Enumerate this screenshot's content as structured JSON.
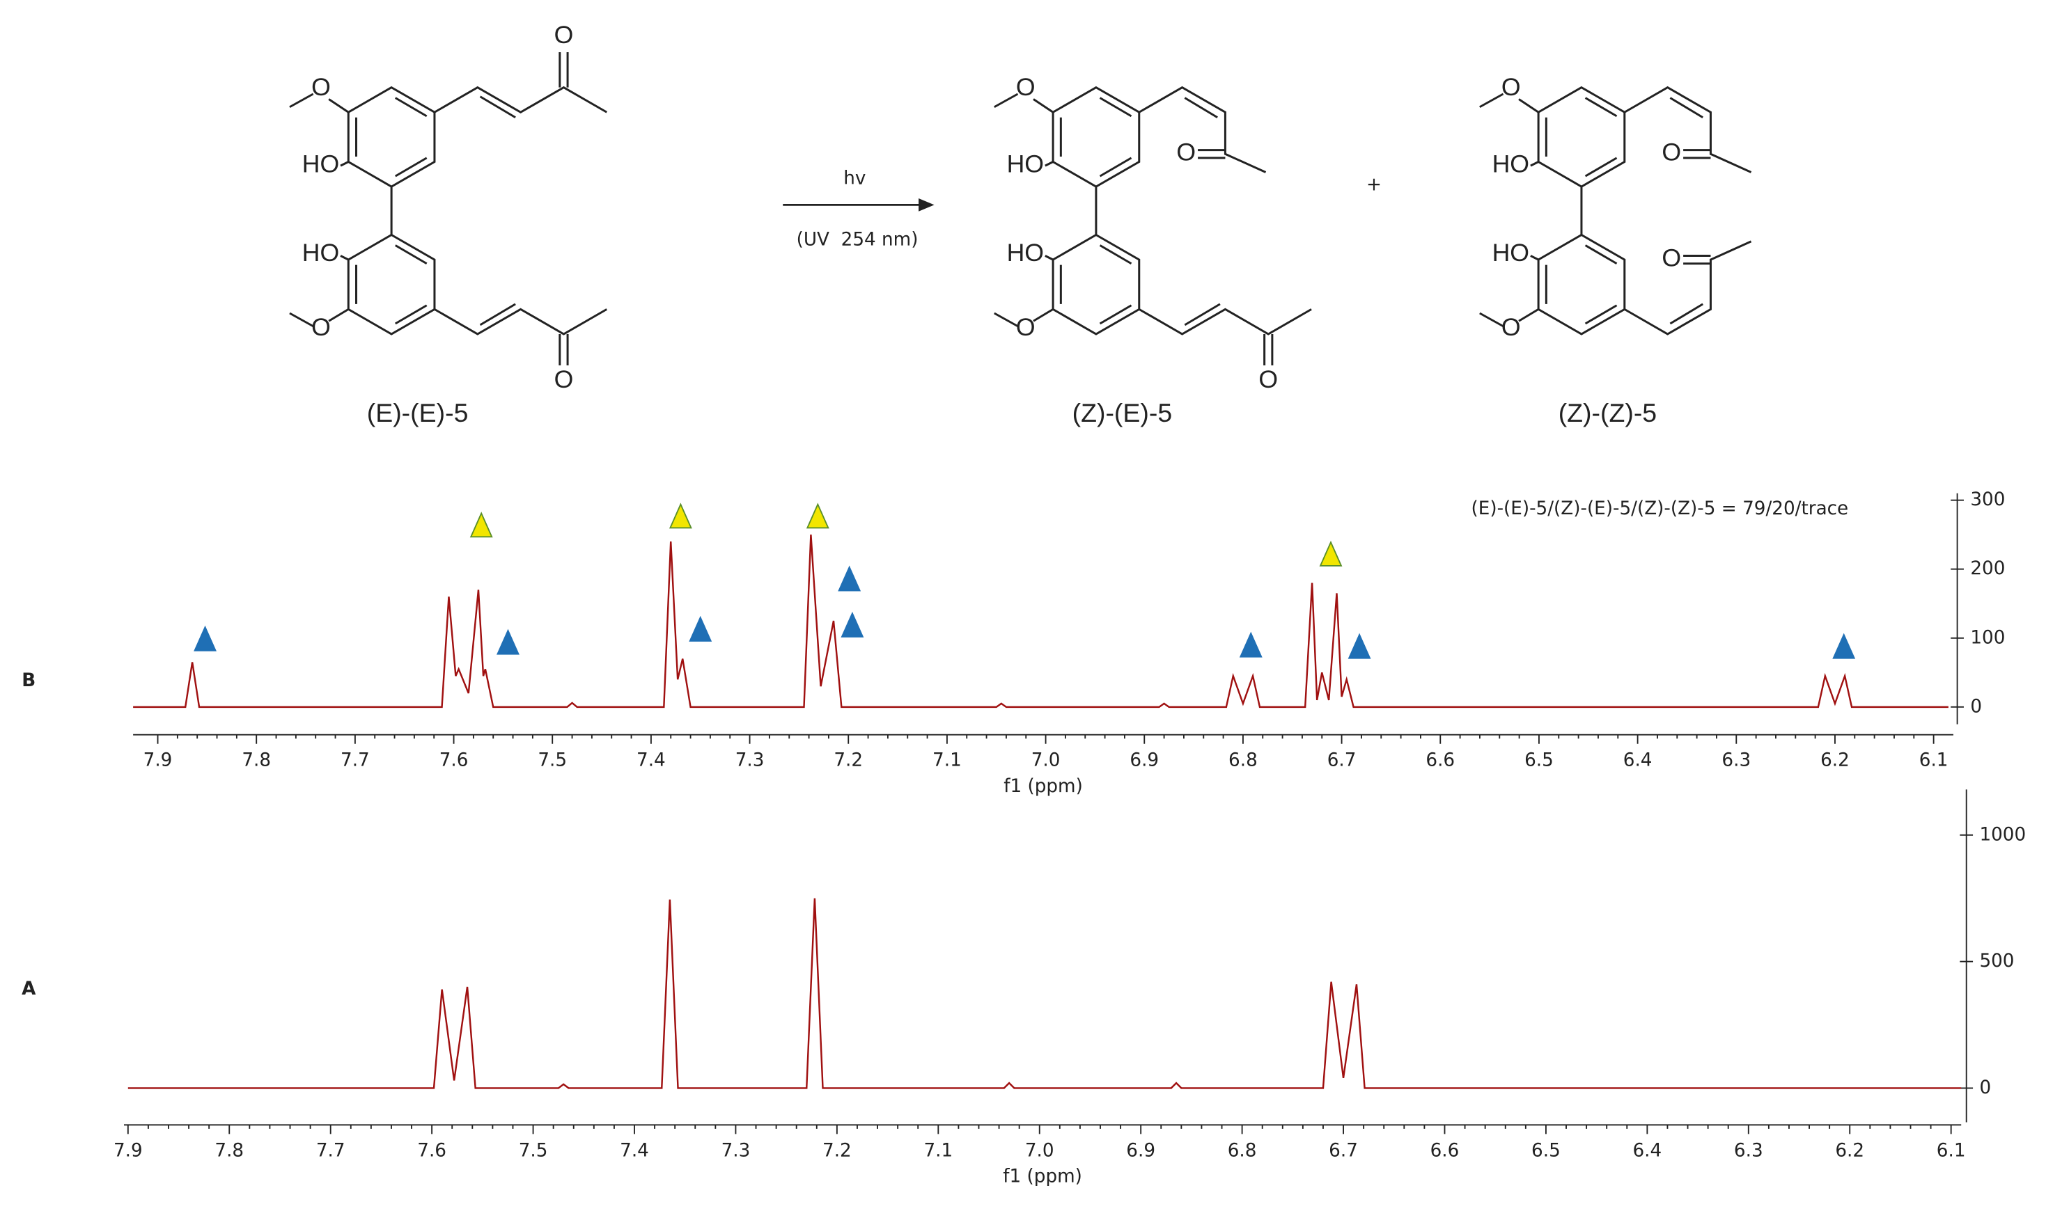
{
  "scheme": {
    "reactant": {
      "label": "(E)-(E)-5",
      "atoms": [
        "O",
        "HO",
        "HO",
        "O",
        "O",
        "O"
      ]
    },
    "arrow_top": "hv",
    "arrow_bottom": "(UV  254 nm)",
    "plus": "+",
    "product1": {
      "label": "(Z)-(E)-5",
      "atoms": [
        "O",
        "HO",
        "HO",
        "O",
        "O",
        "O"
      ]
    },
    "product2": {
      "label": "(Z)-(Z)-5",
      "atoms": [
        "O",
        "HO",
        "HO",
        "O",
        "O",
        "O"
      ]
    }
  },
  "chart_data": [
    {
      "type": "line",
      "panel_label": "B",
      "xlabel": "f1 (ppm)",
      "color": "#a01010",
      "annotation": "(E)-(E)-5/(Z)-(E)-5/(Z)-(Z)-5 = 79/20/trace",
      "xlim": [
        7.925,
        6.08
      ],
      "ylim": [
        -25,
        310
      ],
      "xticks": [
        7.9,
        7.8,
        7.7,
        7.6,
        7.5,
        7.4,
        7.3,
        7.2,
        7.1,
        {
          "value": 7,
          "label": "7.0"
        },
        6.9,
        6.8,
        6.7,
        6.6,
        6.5,
        6.4,
        6.3,
        6.2,
        6.1
      ],
      "yticks": [
        0,
        100,
        200,
        300
      ],
      "x": [
        7.925,
        7.872,
        7.865,
        7.858,
        7.612,
        7.605,
        7.598,
        7.595,
        7.585,
        7.575,
        7.57,
        7.568,
        7.56,
        7.485,
        7.48,
        7.475,
        7.387,
        7.38,
        7.373,
        7.368,
        7.36,
        7.245,
        7.238,
        7.228,
        7.215,
        7.207,
        7.05,
        7.045,
        7.04,
        6.885,
        6.88,
        6.875,
        6.817,
        6.81,
        6.8,
        6.79,
        6.783,
        6.737,
        6.73,
        6.725,
        6.72,
        6.713,
        6.705,
        6.7,
        6.695,
        6.688,
        6.217,
        6.21,
        6.2,
        6.19,
        6.183,
        6.085
      ],
      "values": [
        0,
        0,
        65,
        0,
        0,
        160,
        45,
        55,
        20,
        170,
        45,
        55,
        0,
        0,
        6,
        0,
        0,
        240,
        40,
        70,
        0,
        0,
        250,
        30,
        125,
        0,
        0,
        5,
        0,
        0,
        5,
        0,
        0,
        45,
        5,
        45,
        0,
        0,
        180,
        10,
        50,
        10,
        165,
        15,
        40,
        0,
        0,
        45,
        5,
        45,
        0,
        0
      ],
      "markers": [
        {
          "x": 7.852,
          "y": 97,
          "color": "#1f6fb5"
        },
        {
          "x": 7.545,
          "y": 92,
          "color": "#1f6fb5"
        },
        {
          "x": 7.35,
          "y": 111,
          "color": "#1f6fb5"
        },
        {
          "x": 7.199,
          "y": 184,
          "color": "#1f6fb5"
        },
        {
          "x": 7.196,
          "y": 117,
          "color": "#1f6fb5"
        },
        {
          "x": 6.792,
          "y": 88,
          "color": "#1f6fb5"
        },
        {
          "x": 6.682,
          "y": 86,
          "color": "#1f6fb5"
        },
        {
          "x": 6.191,
          "y": 86,
          "color": "#1f6fb5"
        },
        {
          "x": 7.572,
          "y": 262,
          "color": "#f2e600"
        },
        {
          "x": 7.37,
          "y": 275,
          "color": "#f2e600"
        },
        {
          "x": 7.231,
          "y": 275,
          "color": "#f2e600"
        },
        {
          "x": 6.711,
          "y": 220,
          "color": "#f2e600"
        }
      ]
    },
    {
      "type": "line",
      "panel_label": "A",
      "xlabel": "f1 (ppm)",
      "color": "#a01010",
      "xlim": [
        7.904,
        6.09
      ],
      "ylim": [
        -135,
        1180
      ],
      "xticks": [
        7.9,
        7.8,
        7.7,
        7.6,
        7.5,
        7.4,
        7.3,
        7.2,
        7.1,
        {
          "value": 7,
          "label": "7.0"
        },
        6.9,
        6.8,
        6.7,
        6.6,
        6.5,
        6.4,
        6.3,
        6.2,
        6.1
      ],
      "yticks": [
        0,
        500,
        1000
      ],
      "x": [
        7.9,
        7.598,
        7.59,
        7.578,
        7.565,
        7.557,
        7.475,
        7.47,
        7.465,
        7.373,
        7.365,
        7.357,
        7.23,
        7.222,
        7.214,
        7.035,
        7.03,
        7.025,
        6.87,
        6.865,
        6.86,
        6.72,
        6.712,
        6.7,
        6.687,
        6.679,
        6.09
      ],
      "values": [
        0,
        0,
        390,
        30,
        400,
        0,
        0,
        15,
        0,
        0,
        745,
        0,
        0,
        750,
        0,
        0,
        20,
        0,
        0,
        20,
        0,
        0,
        420,
        40,
        410,
        0,
        0
      ]
    }
  ]
}
